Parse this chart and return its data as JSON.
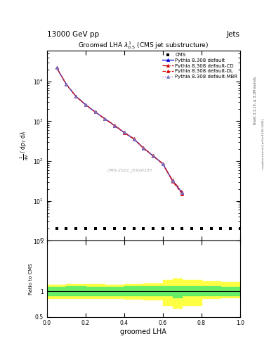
{
  "title_main": "13000 GeV pp",
  "title_right": "Jets",
  "plot_title": "Groomed LHA $\\lambda^{1}_{0.5}$ (CMS jet substructure)",
  "xlabel": "groomed LHA",
  "ylabel_main": "$\\frac{1}{\\mathrm{d}N}\\,/\\,\\mathrm{d}p_{T}\\,\\mathrm{d}\\lambda$",
  "ylabel_ratio": "Ratio to CMS",
  "rivet_label": "Rivet 3.1.10, ≥ 3.1M events",
  "mcplots_label": "mcplots.cern.ch [arXiv:1306.3436]",
  "cms_watermark": "CMS-2021_I1920187",
  "x_main": [
    0.05,
    0.1,
    0.15,
    0.2,
    0.25,
    0.3,
    0.35,
    0.4,
    0.45,
    0.5,
    0.55,
    0.6,
    0.65,
    0.7
  ],
  "y_default": [
    22000,
    8500,
    4200,
    2600,
    1700,
    1150,
    780,
    520,
    360,
    210,
    135,
    85,
    32,
    16
  ],
  "y_cd": [
    22000,
    8500,
    4250,
    2620,
    1720,
    1160,
    790,
    530,
    365,
    213,
    137,
    86,
    33,
    17
  ],
  "y_dl": [
    22000,
    8480,
    4180,
    2580,
    1690,
    1140,
    770,
    515,
    355,
    208,
    133,
    84,
    31,
    15
  ],
  "y_mbr": [
    22000,
    8500,
    4200,
    2600,
    1700,
    1150,
    780,
    520,
    360,
    210,
    135,
    85,
    32,
    16
  ],
  "cms_x": [
    0.05,
    0.1,
    0.15,
    0.2,
    0.25,
    0.3,
    0.35,
    0.4,
    0.45,
    0.5,
    0.55,
    0.6,
    0.65,
    0.7,
    0.75,
    0.8,
    0.85,
    0.9,
    0.95,
    1.0
  ],
  "cms_y": [
    2,
    2,
    2,
    2,
    2,
    2,
    2,
    2,
    2,
    2,
    2,
    2,
    2,
    2,
    2,
    2,
    2,
    2,
    2,
    2
  ],
  "color_default": "#0000dd",
  "color_cd": "#cc0000",
  "color_dl": "#dd0000",
  "color_mbr": "#7777cc",
  "ylim_main": [
    1,
    60000
  ],
  "xlim": [
    0.0,
    1.0
  ],
  "ylim_ratio": [
    0.5,
    2.0
  ],
  "ratio_yticks": [
    0.5,
    1.0,
    2.0
  ],
  "ratio_yticklabels": [
    "0.5",
    "1",
    "2"
  ],
  "green_band_edges": [
    0.0,
    0.1,
    0.2,
    0.3,
    0.4,
    0.45,
    0.5,
    0.6,
    0.65,
    0.7,
    0.8,
    0.9,
    1.0
  ],
  "green_lo": [
    0.93,
    0.93,
    0.93,
    0.93,
    0.93,
    0.93,
    0.93,
    0.92,
    0.88,
    0.93,
    0.93,
    0.93,
    0.93
  ],
  "green_hi": [
    1.09,
    1.1,
    1.09,
    1.09,
    1.1,
    1.1,
    1.1,
    1.11,
    1.1,
    1.1,
    1.1,
    1.09,
    1.09
  ],
  "yellow_lo": [
    0.87,
    0.87,
    0.87,
    0.87,
    0.86,
    0.85,
    0.84,
    0.73,
    0.68,
    0.73,
    0.87,
    0.88,
    0.9
  ],
  "yellow_hi": [
    1.13,
    1.15,
    1.14,
    1.13,
    1.14,
    1.15,
    1.16,
    1.23,
    1.26,
    1.23,
    1.2,
    1.18,
    1.2
  ],
  "background_color": "#ffffff"
}
